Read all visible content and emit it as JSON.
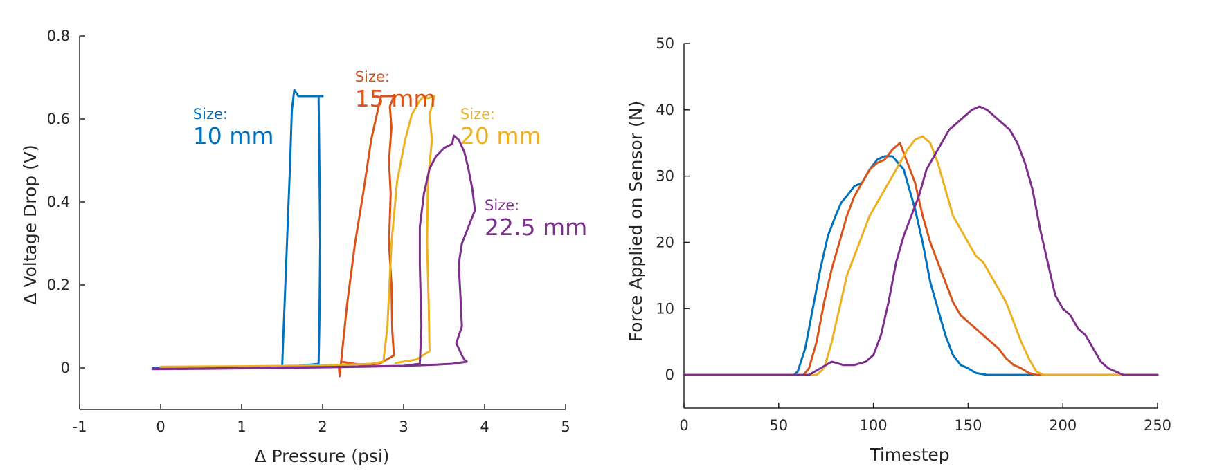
{
  "chart_data": [
    {
      "type": "line",
      "title": "",
      "xlabel": "Δ Pressure (psi)",
      "ylabel": "Δ Voltage Drop (V)",
      "xlim": [
        -1,
        5
      ],
      "ylim": [
        -0.1,
        0.8
      ],
      "xticks": [
        -1,
        0,
        1,
        2,
        3,
        4,
        5
      ],
      "yticks": [
        0,
        0.2,
        0.4,
        0.6,
        0.8
      ],
      "xtick_labels": [
        "-1",
        "0",
        "1",
        "2",
        "3",
        "4",
        "5"
      ],
      "ytick_labels": [
        "0",
        "0.2",
        "0.4",
        "0.6",
        "0.8"
      ],
      "grid": false,
      "series": [
        {
          "color": "#0072BD",
          "points": [
            [
              -0.1,
              0.0
            ],
            [
              0.5,
              0.002
            ],
            [
              1.0,
              0.003
            ],
            [
              1.45,
              0.003
            ],
            [
              1.5,
              0.0
            ],
            [
              1.52,
              0.1
            ],
            [
              1.56,
              0.3
            ],
            [
              1.6,
              0.5
            ],
            [
              1.62,
              0.62
            ],
            [
              1.65,
              0.67
            ],
            [
              1.7,
              0.655
            ],
            [
              1.8,
              0.655
            ],
            [
              1.9,
              0.655
            ],
            [
              2.0,
              0.655
            ],
            [
              1.95,
              0.655
            ],
            [
              1.96,
              0.5
            ],
            [
              1.97,
              0.3
            ],
            [
              1.96,
              0.1
            ],
            [
              1.95,
              0.01
            ],
            [
              1.7,
              0.005
            ],
            [
              1.2,
              0.003
            ],
            [
              0.5,
              0.002
            ],
            [
              -0.1,
              0.0
            ]
          ]
        },
        {
          "color": "#D95319",
          "points": [
            [
              0.0,
              0.0
            ],
            [
              1.0,
              0.002
            ],
            [
              2.0,
              0.003
            ],
            [
              2.2,
              0.005
            ],
            [
              2.21,
              -0.02
            ],
            [
              2.3,
              0.15
            ],
            [
              2.4,
              0.3
            ],
            [
              2.5,
              0.42
            ],
            [
              2.6,
              0.55
            ],
            [
              2.68,
              0.62
            ],
            [
              2.72,
              0.655
            ],
            [
              2.8,
              0.655
            ],
            [
              2.88,
              0.655
            ],
            [
              2.83,
              0.63
            ],
            [
              2.85,
              0.58
            ],
            [
              2.82,
              0.5
            ],
            [
              2.84,
              0.42
            ],
            [
              2.82,
              0.3
            ],
            [
              2.85,
              0.2
            ],
            [
              2.86,
              0.09
            ],
            [
              2.88,
              0.03
            ],
            [
              2.7,
              0.01
            ],
            [
              2.5,
              0.007
            ],
            [
              2.23,
              0.015
            ]
          ]
        },
        {
          "color": "#EDB120",
          "points": [
            [
              0.0,
              0.003
            ],
            [
              1.0,
              0.004
            ],
            [
              2.0,
              0.006
            ],
            [
              2.6,
              0.01
            ],
            [
              2.75,
              0.015
            ],
            [
              2.8,
              0.1
            ],
            [
              2.85,
              0.3
            ],
            [
              2.92,
              0.45
            ],
            [
              3.02,
              0.55
            ],
            [
              3.1,
              0.61
            ],
            [
              3.2,
              0.645
            ],
            [
              3.25,
              0.655
            ],
            [
              3.3,
              0.65
            ],
            [
              3.38,
              0.655
            ],
            [
              3.32,
              0.61
            ],
            [
              3.35,
              0.55
            ],
            [
              3.3,
              0.45
            ],
            [
              3.29,
              0.3
            ],
            [
              3.31,
              0.15
            ],
            [
              3.32,
              0.04
            ],
            [
              3.15,
              0.02
            ],
            [
              2.9,
              0.012
            ]
          ]
        },
        {
          "color": "#7E2F8E",
          "points": [
            [
              -0.1,
              -0.003
            ],
            [
              0.5,
              -0.002
            ],
            [
              1.5,
              0.0
            ],
            [
              2.5,
              0.003
            ],
            [
              3.0,
              0.005
            ],
            [
              3.2,
              0.01
            ],
            [
              3.22,
              0.1
            ],
            [
              3.2,
              0.25
            ],
            [
              3.2,
              0.34
            ],
            [
              3.25,
              0.42
            ],
            [
              3.32,
              0.48
            ],
            [
              3.4,
              0.51
            ],
            [
              3.5,
              0.53
            ],
            [
              3.6,
              0.54
            ],
            [
              3.62,
              0.56
            ],
            [
              3.68,
              0.55
            ],
            [
              3.75,
              0.52
            ],
            [
              3.8,
              0.48
            ],
            [
              3.85,
              0.43
            ],
            [
              3.88,
              0.38
            ],
            [
              3.8,
              0.34
            ],
            [
              3.72,
              0.3
            ],
            [
              3.68,
              0.25
            ],
            [
              3.7,
              0.18
            ],
            [
              3.72,
              0.1
            ],
            [
              3.65,
              0.06
            ],
            [
              3.72,
              0.03
            ],
            [
              3.75,
              0.02
            ],
            [
              3.78,
              0.015
            ],
            [
              3.6,
              0.01
            ],
            [
              3.4,
              0.008
            ],
            [
              3.0,
              0.005
            ],
            [
              2.0,
              0.002
            ],
            [
              1.0,
              0.0
            ],
            [
              0.3,
              -0.002
            ],
            [
              -0.1,
              -0.003
            ]
          ]
        }
      ],
      "annotations": [
        {
          "label": "Size:",
          "value": "10 mm",
          "color": "#0072BD",
          "x": 0.4,
          "y": 0.6
        },
        {
          "label": "Size:",
          "value": "15 mm",
          "color": "#D95319",
          "x": 2.4,
          "y": 0.69
        },
        {
          "label": "Size:",
          "value": "20 mm",
          "color": "#EDB120",
          "x": 3.7,
          "y": 0.6
        },
        {
          "label": "Size:",
          "value": "22.5 mm",
          "color": "#7E2F8E",
          "x": 4.0,
          "y": 0.38
        }
      ]
    },
    {
      "type": "line",
      "title": "",
      "xlabel": "Timestep",
      "ylabel": "Force Applied on Sensor (N)",
      "xlim": [
        0,
        250
      ],
      "ylim": [
        -5,
        50
      ],
      "xticks": [
        0,
        50,
        100,
        150,
        200,
        250
      ],
      "yticks": [
        0,
        10,
        20,
        30,
        40,
        50
      ],
      "xtick_labels": [
        "0",
        "50",
        "100",
        "150",
        "200",
        "250"
      ],
      "ytick_labels": [
        "0",
        "10",
        "20",
        "30",
        "40",
        "50"
      ],
      "grid": false,
      "series": [
        {
          "color": "#0072BD",
          "points": [
            [
              0,
              0
            ],
            [
              58,
              0
            ],
            [
              60,
              0.5
            ],
            [
              64,
              4
            ],
            [
              68,
              10
            ],
            [
              72,
              16
            ],
            [
              76,
              21
            ],
            [
              80,
              24
            ],
            [
              83,
              26
            ],
            [
              86,
              27
            ],
            [
              90,
              28.5
            ],
            [
              94,
              29
            ],
            [
              98,
              31
            ],
            [
              102,
              32.5
            ],
            [
              106,
              33
            ],
            [
              110,
              33
            ],
            [
              113,
              32
            ],
            [
              116,
              31
            ],
            [
              119,
              28
            ],
            [
              122,
              25
            ],
            [
              126,
              20
            ],
            [
              130,
              14
            ],
            [
              134,
              10
            ],
            [
              138,
              6
            ],
            [
              142,
              3
            ],
            [
              146,
              1.5
            ],
            [
              150,
              1
            ],
            [
              154,
              0.3
            ],
            [
              160,
              0
            ],
            [
              250,
              0
            ]
          ]
        },
        {
          "color": "#D95319",
          "points": [
            [
              0,
              0
            ],
            [
              63,
              0
            ],
            [
              66,
              1
            ],
            [
              70,
              5
            ],
            [
              74,
              11
            ],
            [
              78,
              16
            ],
            [
              82,
              20
            ],
            [
              86,
              24
            ],
            [
              90,
              27
            ],
            [
              94,
              29
            ],
            [
              98,
              31
            ],
            [
              102,
              32
            ],
            [
              106,
              32.5
            ],
            [
              110,
              34
            ],
            [
              114,
              35
            ],
            [
              118,
              32
            ],
            [
              122,
              29
            ],
            [
              126,
              24
            ],
            [
              130,
              20
            ],
            [
              134,
              17
            ],
            [
              138,
              14
            ],
            [
              142,
              11
            ],
            [
              146,
              9
            ],
            [
              150,
              8
            ],
            [
              154,
              7
            ],
            [
              158,
              6
            ],
            [
              162,
              5
            ],
            [
              166,
              4
            ],
            [
              170,
              2.5
            ],
            [
              174,
              1.5
            ],
            [
              178,
              1
            ],
            [
              182,
              0.3
            ],
            [
              186,
              0
            ],
            [
              250,
              0
            ]
          ]
        },
        {
          "color": "#EDB120",
          "points": [
            [
              0,
              0
            ],
            [
              70,
              0
            ],
            [
              74,
              1
            ],
            [
              78,
              5
            ],
            [
              82,
              10
            ],
            [
              86,
              15
            ],
            [
              90,
              18
            ],
            [
              94,
              21
            ],
            [
              98,
              24
            ],
            [
              102,
              26
            ],
            [
              106,
              28
            ],
            [
              110,
              30
            ],
            [
              114,
              32
            ],
            [
              118,
              34
            ],
            [
              122,
              35.5
            ],
            [
              126,
              36
            ],
            [
              130,
              35
            ],
            [
              134,
              32
            ],
            [
              138,
              28
            ],
            [
              142,
              24
            ],
            [
              146,
              22
            ],
            [
              150,
              20
            ],
            [
              154,
              18
            ],
            [
              158,
              17
            ],
            [
              162,
              15
            ],
            [
              166,
              13
            ],
            [
              170,
              11
            ],
            [
              174,
              8
            ],
            [
              178,
              5
            ],
            [
              182,
              2.5
            ],
            [
              186,
              0.5
            ],
            [
              190,
              0
            ],
            [
              250,
              0
            ]
          ]
        },
        {
          "color": "#7E2F8E",
          "points": [
            [
              0,
              0
            ],
            [
              66,
              0
            ],
            [
              72,
              1
            ],
            [
              78,
              2
            ],
            [
              84,
              1.5
            ],
            [
              90,
              1.5
            ],
            [
              96,
              2
            ],
            [
              100,
              3
            ],
            [
              104,
              6
            ],
            [
              108,
              11
            ],
            [
              112,
              17
            ],
            [
              116,
              21
            ],
            [
              120,
              24
            ],
            [
              124,
              27
            ],
            [
              128,
              31
            ],
            [
              132,
              33
            ],
            [
              136,
              35
            ],
            [
              140,
              37
            ],
            [
              144,
              38
            ],
            [
              148,
              39
            ],
            [
              152,
              40
            ],
            [
              156,
              40.5
            ],
            [
              160,
              40
            ],
            [
              164,
              39
            ],
            [
              168,
              38
            ],
            [
              172,
              37
            ],
            [
              176,
              35
            ],
            [
              180,
              32
            ],
            [
              184,
              28
            ],
            [
              188,
              22
            ],
            [
              192,
              17
            ],
            [
              196,
              12
            ],
            [
              200,
              10
            ],
            [
              204,
              9
            ],
            [
              208,
              7
            ],
            [
              212,
              6
            ],
            [
              216,
              4
            ],
            [
              220,
              2
            ],
            [
              224,
              1
            ],
            [
              228,
              0.5
            ],
            [
              232,
              0
            ],
            [
              250,
              0
            ]
          ]
        }
      ]
    }
  ]
}
